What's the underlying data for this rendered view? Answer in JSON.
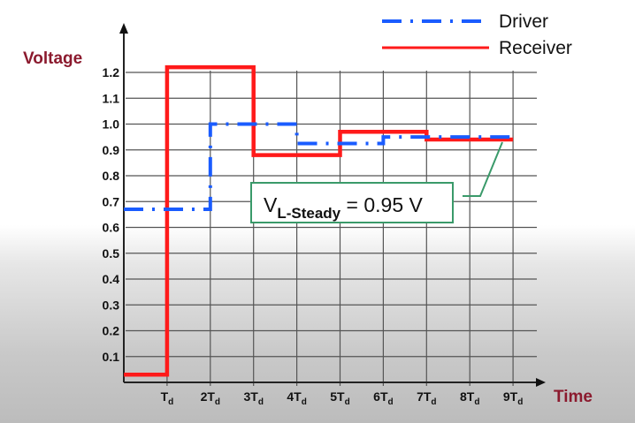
{
  "chart_data": {
    "type": "line",
    "title": "",
    "xlabel": "Time",
    "ylabel": "Voltage",
    "x_ticks": [
      "Td",
      "2Td",
      "3Td",
      "4Td",
      "5Td",
      "6Td",
      "7Td",
      "8Td",
      "9Td"
    ],
    "y_ticks": [
      "0.1",
      "0.2",
      "0.3",
      "0.4",
      "0.5",
      "0.6",
      "0.7",
      "0.8",
      "0.9",
      "1.0",
      "1.1",
      "1.2"
    ],
    "ylim": [
      0.0,
      1.2
    ],
    "xlim": [
      0,
      9.6
    ],
    "grid": true,
    "legend_position": "top-right",
    "step": true,
    "series": [
      {
        "name": "Driver",
        "style": "dash-dot",
        "color": "#1a5cff",
        "x": [
          0,
          2,
          2,
          4,
          4,
          6,
          6,
          9
        ],
        "y": [
          0.67,
          0.67,
          1.0,
          1.0,
          0.925,
          0.925,
          0.95,
          0.95
        ]
      },
      {
        "name": "Receiver",
        "style": "solid",
        "color": "#ff1a1a",
        "x": [
          0,
          1,
          1,
          3,
          3,
          5,
          5,
          7,
          7,
          9
        ],
        "y": [
          0.03,
          0.03,
          1.22,
          1.22,
          0.88,
          0.88,
          0.97,
          0.97,
          0.94,
          0.94
        ]
      }
    ],
    "annotations": [
      {
        "text": "VL-Steady = 0.95 V",
        "main": "V",
        "subscript": "L-Steady",
        "suffix": " = 0.95 V",
        "points_to": {
          "x": 8.8,
          "y": 0.95
        },
        "border_color": "#3a9a6a"
      }
    ]
  },
  "labels": {
    "y_axis_title": "Voltage",
    "x_axis_title": "Time",
    "legend": {
      "driver": "Driver",
      "receiver": "Receiver"
    },
    "callout": {
      "main": "V",
      "sub": "L-Steady",
      "rest": " = 0.95 V"
    },
    "x_ticks": [
      {
        "n": "",
        "sub": "d"
      },
      {
        "n": "2",
        "sub": "d"
      },
      {
        "n": "3",
        "sub": "d"
      },
      {
        "n": "4",
        "sub": "d"
      },
      {
        "n": "5",
        "sub": "d"
      },
      {
        "n": "6",
        "sub": "d"
      },
      {
        "n": "7",
        "sub": "d"
      },
      {
        "n": "8",
        "sub": "d"
      },
      {
        "n": "9",
        "sub": "d"
      }
    ],
    "x_tick_letter": "T"
  },
  "colors": {
    "driver": "#1a5cff",
    "receiver": "#ff1a1a",
    "axis_title": "#8b1a2e",
    "callout_border": "#3a9a6a",
    "grid": "#555555"
  }
}
